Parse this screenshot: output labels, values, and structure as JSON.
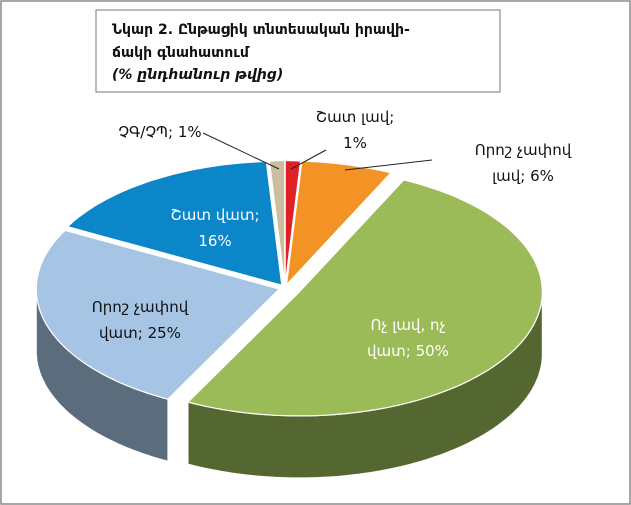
{
  "chart_data": {
    "type": "pie3d",
    "title": [
      "Նկար 2. Ընթացիկ տնտեսական  իրավի-",
      "ճակի գնահատում"
    ],
    "subtitle": "(% ընդհանուր  թվից)",
    "values": [
      1,
      6,
      50,
      25,
      16,
      1
    ],
    "value_labels": [
      "Շատ լավ;\n1%",
      "Որոշ չափով\nլավ; 6%",
      "Ոչ լավ, ոչ\nվատ; 50%",
      "Որոշ չափով\nվատ; 25%",
      "Շատ վատ;\n16%",
      "ՉԳ/ՉՊ; 1%"
    ],
    "colors": [
      "#e02027",
      "#f39325",
      "#9bbb59",
      "#a6c4e3",
      "#0a86c9",
      "#cbbd9f"
    ]
  }
}
